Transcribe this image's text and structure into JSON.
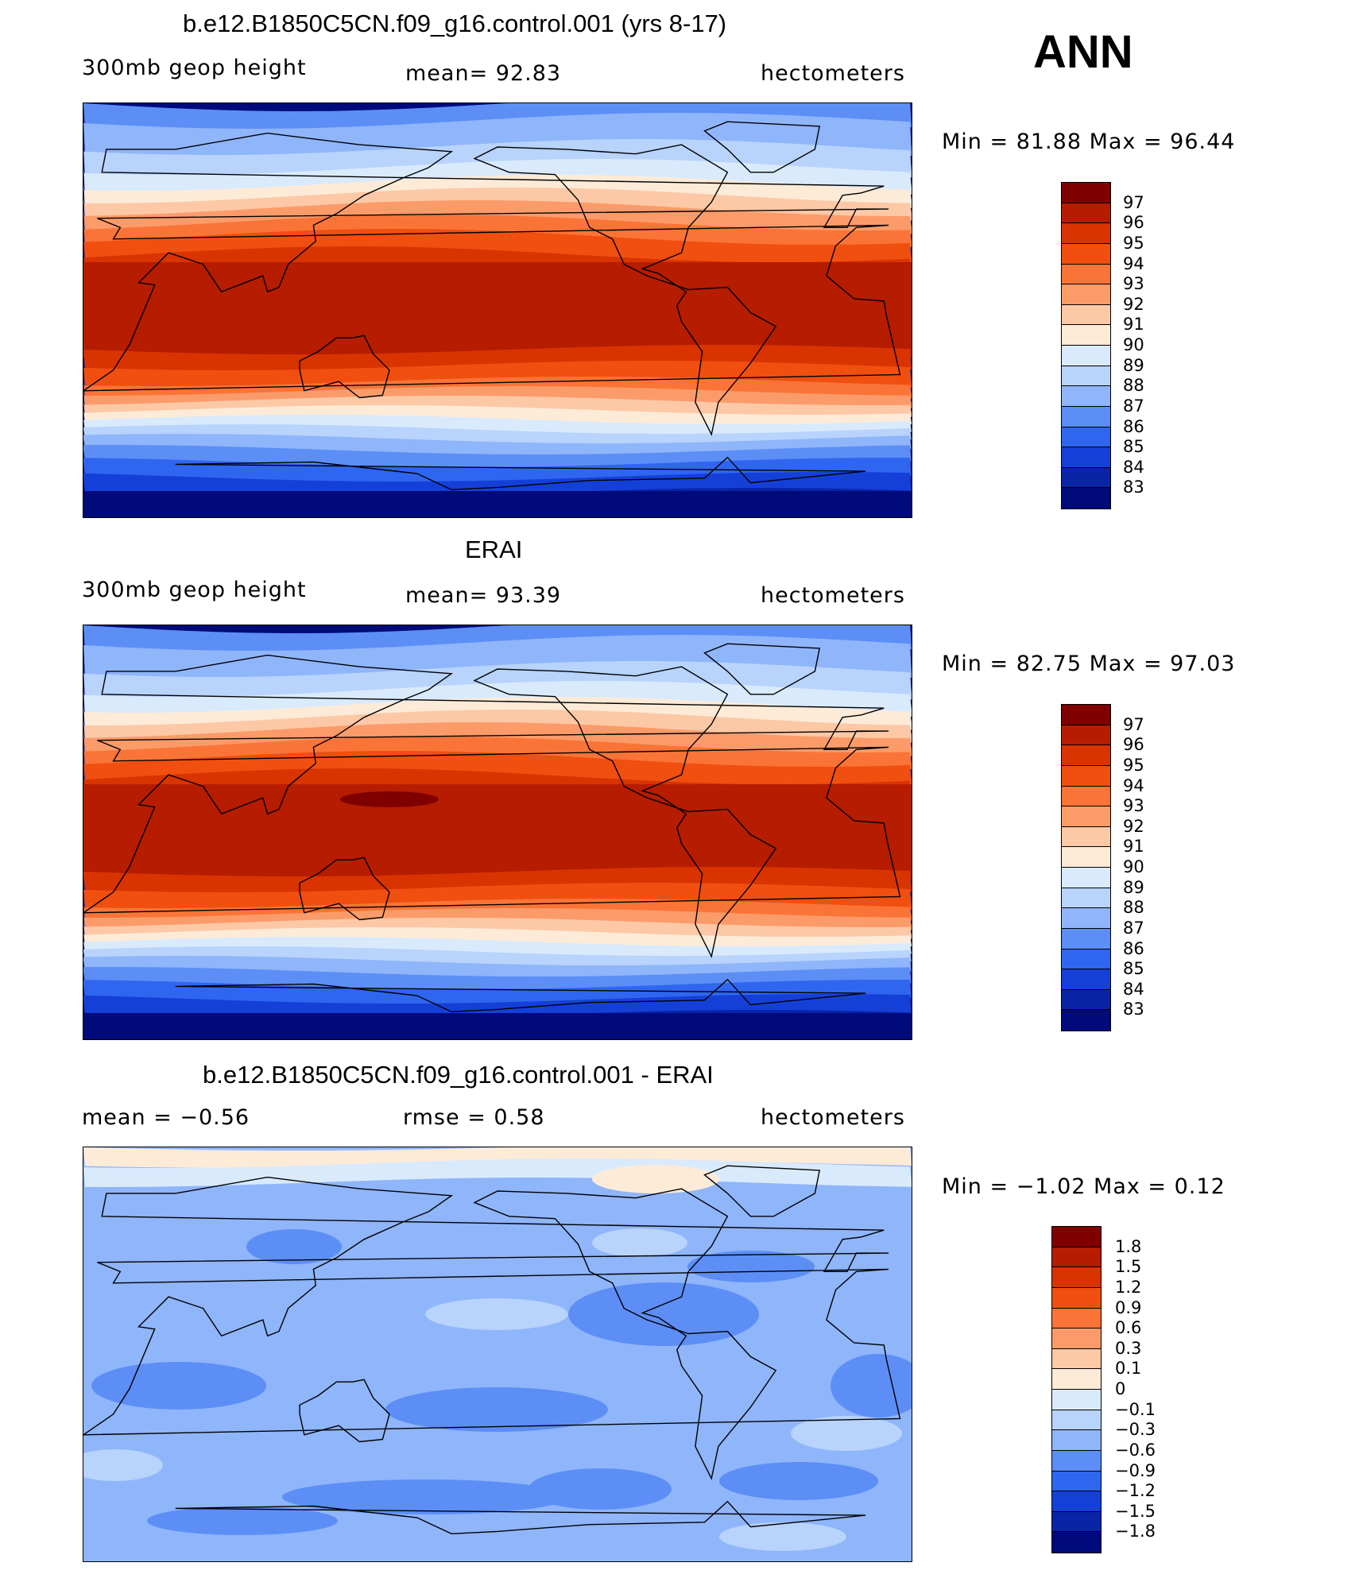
{
  "season": "ANN",
  "panels": [
    {
      "title": "b.e12.B1850C5CN.f09_g16.control.001 (yrs 8-17)",
      "left_label": "300mb  geop  height",
      "center_label": "mean=   92.83",
      "units": "hectometers",
      "minmax": "Min  =    81.88  Max  =    96.44",
      "levels": [
        "97",
        "96",
        "95",
        "94",
        "93",
        "92",
        "91",
        "90",
        "89",
        "88",
        "87",
        "86",
        "85",
        "84",
        "83"
      ],
      "colors": [
        "#800000",
        "#b51c00",
        "#d93300",
        "#f04f10",
        "#fb7437",
        "#fc9b6a",
        "#fdc8a6",
        "#fdebd8",
        "#d9eafd",
        "#b8d3fc",
        "#8fb5fa",
        "#5c8ef6",
        "#2f66f0",
        "#1440d8",
        "#0a24a8",
        "#000a7a"
      ]
    },
    {
      "title": "ERAI",
      "left_label": "300mb  geop  height",
      "center_label": "mean=   93.39",
      "units": "hectometers",
      "minmax": "Min  =    82.75  Max  =    97.03",
      "levels": [
        "97",
        "96",
        "95",
        "94",
        "93",
        "92",
        "91",
        "90",
        "89",
        "88",
        "87",
        "86",
        "85",
        "84",
        "83"
      ],
      "colors": [
        "#800000",
        "#b51c00",
        "#d93300",
        "#f04f10",
        "#fb7437",
        "#fc9b6a",
        "#fdc8a6",
        "#fdebd8",
        "#d9eafd",
        "#b8d3fc",
        "#8fb5fa",
        "#5c8ef6",
        "#2f66f0",
        "#1440d8",
        "#0a24a8",
        "#000a7a"
      ]
    },
    {
      "title": "b.e12.B1850C5CN.f09_g16.control.001 - ERAI",
      "left_label": "mean  =    −0.56",
      "center_label": "rmse  =     0.58",
      "units": "hectometers",
      "minmax": "Min  =    −1.02  Max  =     0.12",
      "levels": [
        "1.8",
        "1.5",
        "1.2",
        "0.9",
        "0.6",
        "0.3",
        "0.1",
        "0",
        "−0.1",
        "−0.3",
        "−0.6",
        "−0.9",
        "−1.2",
        "−1.5",
        "−1.8"
      ],
      "colors": [
        "#800000",
        "#b51c00",
        "#d93300",
        "#f04f10",
        "#fb7437",
        "#fc9b6a",
        "#fdc8a6",
        "#fdebd8",
        "#d9eafd",
        "#b8d3fc",
        "#8fb5fa",
        "#5c8ef6",
        "#2f66f0",
        "#1440d8",
        "#0a24a8",
        "#000a7a"
      ]
    }
  ]
}
